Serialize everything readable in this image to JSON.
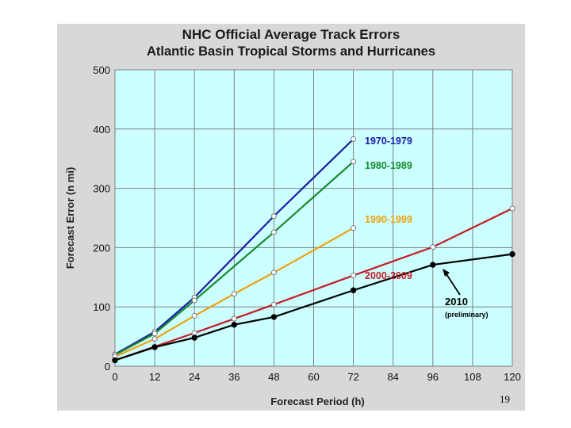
{
  "page": {
    "number": "19"
  },
  "chart_data": {
    "type": "line",
    "title": "NHC Official Average Track Errors",
    "subtitle": "Atlantic Basin Tropical Storms and Hurricanes",
    "xlabel": "Forecast Period (h)",
    "ylabel": "Forecast Error (n mi)",
    "xlim": [
      0,
      120
    ],
    "ylim": [
      0,
      500
    ],
    "xticks": [
      "0",
      "12",
      "24",
      "36",
      "48",
      "60",
      "72",
      "84",
      "96",
      "108",
      "120"
    ],
    "yticks": [
      "0",
      "100",
      "200",
      "300",
      "400",
      "500"
    ],
    "grid": true,
    "background": "#ccffff",
    "series": [
      {
        "name": "1970-1979",
        "color": "#1a1aa8",
        "x": [
          0,
          12,
          24,
          48,
          72
        ],
        "values": [
          20,
          58,
          116,
          253,
          383
        ]
      },
      {
        "name": "1980-1989",
        "color": "#168a2c",
        "x": [
          0,
          12,
          24,
          48,
          72
        ],
        "values": [
          19,
          55,
          111,
          226,
          345
        ]
      },
      {
        "name": "1990-1999",
        "color": "#f0a010",
        "x": [
          0,
          12,
          24,
          36,
          48,
          72
        ],
        "values": [
          16,
          46,
          85,
          122,
          158,
          233
        ]
      },
      {
        "name": "2000-2009",
        "color": "#c41e24",
        "x": [
          0,
          12,
          24,
          36,
          48,
          72,
          96,
          120
        ],
        "values": [
          10,
          33,
          56,
          80,
          104,
          153,
          201,
          266
        ]
      },
      {
        "name": "2010",
        "color": "#000000",
        "x": [
          0,
          12,
          24,
          36,
          48,
          72,
          96,
          120
        ],
        "values": [
          10,
          32,
          48,
          70,
          83,
          128,
          171,
          189
        ]
      }
    ],
    "annotations": [
      {
        "text": "2010",
        "series": "2010"
      },
      {
        "text": "(preliminary)",
        "series": "2010"
      }
    ]
  }
}
